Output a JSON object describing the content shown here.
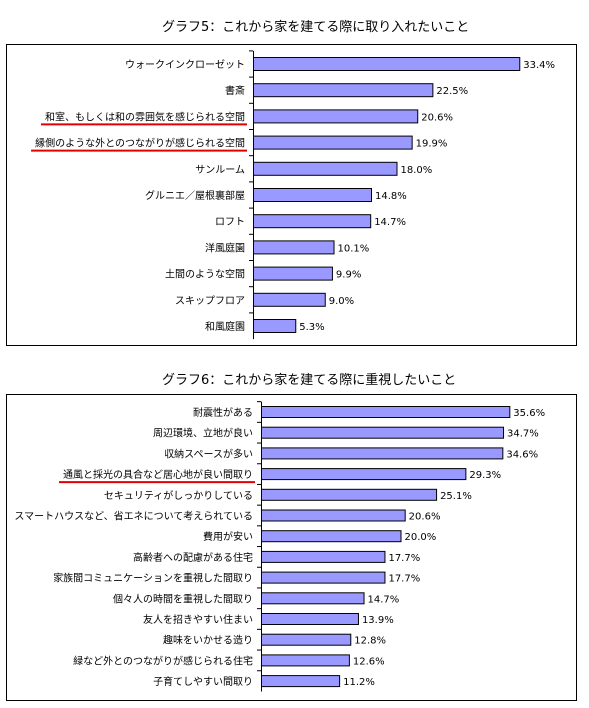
{
  "chart_data": [
    {
      "type": "bar",
      "orientation": "horizontal",
      "title": "グラフ5：これから家を建てる際に取り入れたいこと",
      "categories": [
        "ウォークインクローゼット",
        "書斎",
        "和室、もしくは和の雰囲気を感じられる空間",
        "縁側のような外とのつながりが感じられる空間",
        "サンルーム",
        "グルニエ／屋根裏部屋",
        "ロフト",
        "洋風庭園",
        "土間のような空間",
        "スキップフロア",
        "和風庭園"
      ],
      "values": [
        33.4,
        22.5,
        20.6,
        19.9,
        18.0,
        14.8,
        14.7,
        10.1,
        9.9,
        9.0,
        5.3
      ],
      "value_labels": [
        "33.4%",
        "22.5%",
        "20.6%",
        "19.9%",
        "18.0%",
        "14.8%",
        "14.7%",
        "10.1%",
        "9.9%",
        "9.0%",
        "5.3%"
      ],
      "highlighted": [
        "和室、もしくは和の雰囲気を感じられる空間",
        "縁側のような外とのつながりが感じられる空間"
      ],
      "xlim": [
        0,
        36
      ],
      "grid": false,
      "bar_color": "#9999ff",
      "underline_color": "#e00000"
    },
    {
      "type": "bar",
      "orientation": "horizontal",
      "title": "グラフ6：これから家を建てる際に重視したいこと",
      "categories": [
        "耐震性がある",
        "周辺環境、立地が良い",
        "収納スペースが多い",
        "通風と採光の具合など居心地が良い間取り",
        "セキュリティがしっかりしている",
        "スマートハウスなど、省エネについて考えられている",
        "費用が安い",
        "高齢者への配慮がある住宅",
        "家族間コミュニケーションを重視した間取り",
        "個々人の時間を重視した間取り",
        "友人を招きやすい住まい",
        "趣味をいかせる造り",
        "緑など外とのつながりが感じられる住宅",
        "子育てしやすい間取り"
      ],
      "values": [
        35.6,
        34.7,
        34.6,
        29.3,
        25.1,
        20.6,
        20.0,
        17.7,
        17.7,
        14.7,
        13.9,
        12.8,
        12.6,
        11.2
      ],
      "value_labels": [
        "35.6%",
        "34.7%",
        "34.6%",
        "29.3%",
        "25.1%",
        "20.6%",
        "20.0%",
        "17.7%",
        "17.7%",
        "14.7%",
        "13.9%",
        "12.8%",
        "12.6%",
        "11.2%"
      ],
      "highlighted": [
        "通風と採光の具合など居心地が良い間取り"
      ],
      "xlim": [
        0,
        40
      ],
      "grid": false,
      "bar_color": "#9999ff",
      "underline_color": "#e00000"
    }
  ]
}
